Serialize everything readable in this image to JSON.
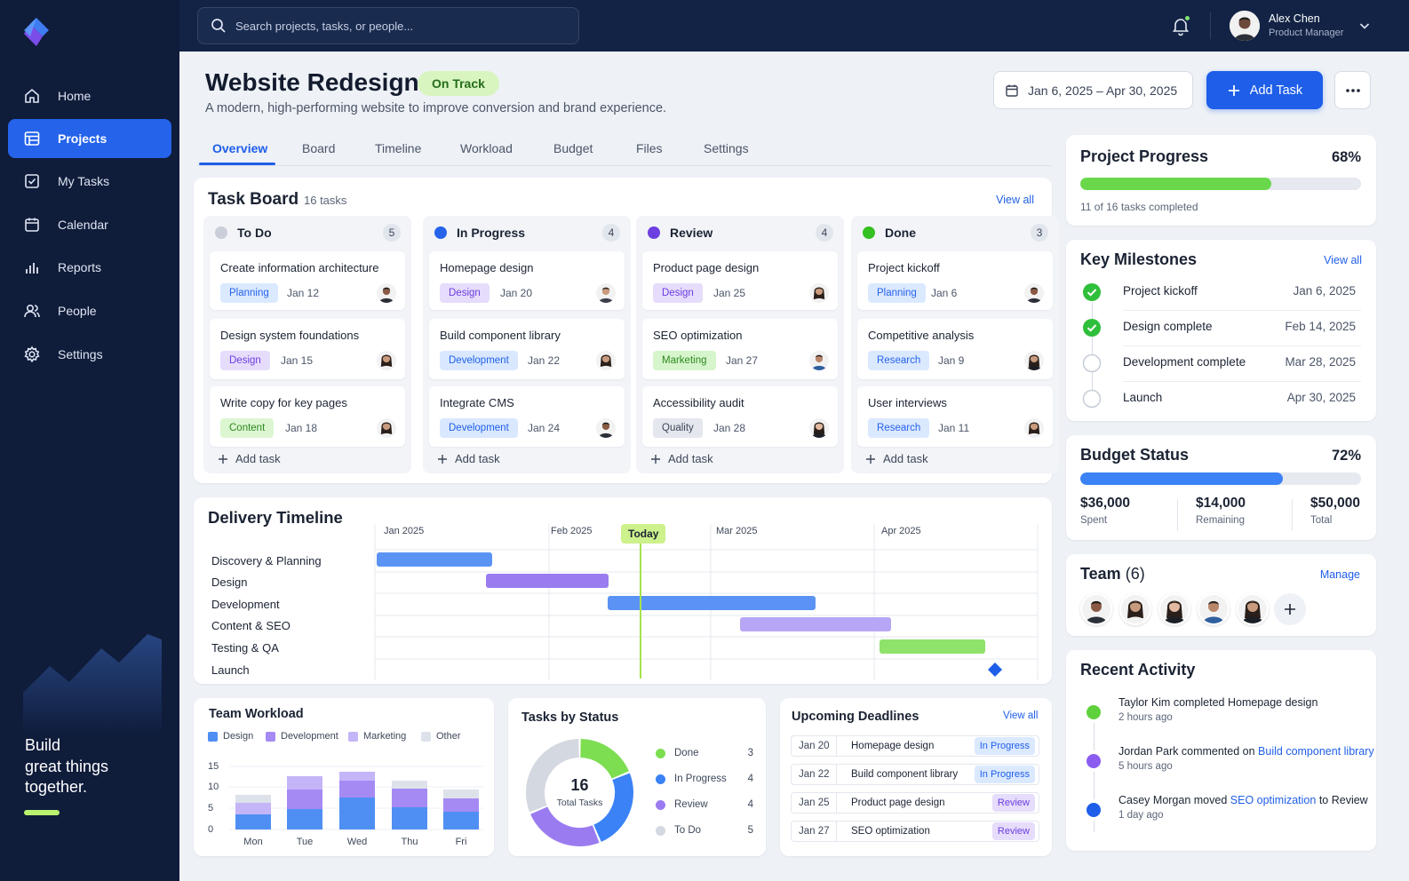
{
  "sidebar": {
    "items": [
      {
        "label": "Home",
        "icon": "home-icon",
        "active": false
      },
      {
        "label": "Projects",
        "icon": "projects-icon",
        "active": true
      },
      {
        "label": "My Tasks",
        "icon": "check-square-icon",
        "active": false
      },
      {
        "label": "Calendar",
        "icon": "calendar-icon",
        "active": false
      },
      {
        "label": "Reports",
        "icon": "bar-chart-icon",
        "active": false
      },
      {
        "label": "People",
        "icon": "people-icon",
        "active": false
      },
      {
        "label": "Settings",
        "icon": "gear-icon",
        "active": false
      }
    ],
    "promo": {
      "line1": "Build",
      "line2": "great things",
      "line3": "together."
    }
  },
  "topbar": {
    "search_placeholder": "Search projects, tasks, or people...",
    "user": {
      "name": "Alex Chen",
      "role": "Product Manager"
    }
  },
  "project": {
    "title": "Website Redesign",
    "status": "On Track",
    "subtitle": "A modern, high-performing website to improve conversion and brand experience.",
    "date_range": "Jan 6, 2025 – Apr 30, 2025",
    "add_task_label": "Add Task",
    "tabs": [
      "Overview",
      "Board",
      "Timeline",
      "Workload",
      "Budget",
      "Files",
      "Settings"
    ],
    "active_tab": "Overview"
  },
  "task_board": {
    "title": "Task Board",
    "count": "16 tasks",
    "view_all": "View all",
    "add_task": "Add task",
    "columns": [
      {
        "title": "To Do",
        "count": "5",
        "color": "#c9ced8",
        "cards": [
          {
            "title": "Create information architecture",
            "tag": "Planning",
            "date": "Jan 12"
          },
          {
            "title": "Design system foundations",
            "tag": "Design",
            "date": "Jan 15"
          },
          {
            "title": "Write copy for key pages",
            "tag": "Content",
            "date": "Jan 18"
          }
        ]
      },
      {
        "title": "In Progress",
        "count": "4",
        "color": "#2563eb",
        "cards": [
          {
            "title": "Homepage design",
            "tag": "Design",
            "date": "Jan 20"
          },
          {
            "title": "Build component library",
            "tag": "Development",
            "date": "Jan 22"
          },
          {
            "title": "Integrate CMS",
            "tag": "Development",
            "date": "Jan 24"
          }
        ]
      },
      {
        "title": "Review",
        "count": "4",
        "color": "#6d3fe0",
        "cards": [
          {
            "title": "Product page design",
            "tag": "Design",
            "date": "Jan 25"
          },
          {
            "title": "SEO optimization",
            "tag": "Marketing",
            "date": "Jan 27"
          },
          {
            "title": "Accessibility audit",
            "tag": "Quality",
            "date": "Jan 28"
          }
        ]
      },
      {
        "title": "Done",
        "count": "3",
        "color": "#34c021",
        "cards": [
          {
            "title": "Project kickoff",
            "tag": "Planning",
            "date": "Jan 6"
          },
          {
            "title": "Competitive analysis",
            "tag": "Research",
            "date": "Jan 9"
          },
          {
            "title": "User interviews",
            "tag": "Research",
            "date": "Jan 11"
          }
        ]
      }
    ]
  },
  "timeline": {
    "title": "Delivery Timeline",
    "months": [
      "Jan 2025",
      "Feb 2025",
      "Mar 2025",
      "Apr 2025"
    ],
    "today_label": "Today",
    "phases": [
      {
        "name": "Discovery & Planning",
        "color": "#5b93f5"
      },
      {
        "name": "Design",
        "color": "#9a7cf0"
      },
      {
        "name": "Development",
        "color": "#5b93f5"
      },
      {
        "name": "Content & SEO",
        "color": "#b6a6f5"
      },
      {
        "name": "Testing & QA",
        "color": "#8fe26a"
      },
      {
        "name": "Launch",
        "color": "#1e5ee8"
      }
    ]
  },
  "workload": {
    "title": "Team Workload",
    "legend": [
      "Design",
      "Development",
      "Marketing",
      "Other"
    ],
    "colors": [
      "#4f8ff3",
      "#a58af3",
      "#c4b5f8",
      "#dde2ea"
    ],
    "y_ticks": [
      "15",
      "10",
      "5",
      "0"
    ],
    "days": [
      "Mon",
      "Tue",
      "Wed",
      "Thu",
      "Fri"
    ]
  },
  "tasks_by_status": {
    "title": "Tasks by Status",
    "total": "16",
    "total_label": "Total Tasks",
    "items": [
      {
        "label": "Done",
        "value": "3",
        "color": "#7dde52"
      },
      {
        "label": "In Progress",
        "value": "4",
        "color": "#3b82f6"
      },
      {
        "label": "Review",
        "value": "4",
        "color": "#9a7cf0"
      },
      {
        "label": "To Do",
        "value": "5",
        "color": "#d4d8e0"
      }
    ]
  },
  "deadlines": {
    "title": "Upcoming Deadlines",
    "view_all": "View all",
    "rows": [
      {
        "date": "Jan 20",
        "task": "Homepage design",
        "status": "In Progress"
      },
      {
        "date": "Jan 22",
        "task": "Build component library",
        "status": "In Progress"
      },
      {
        "date": "Jan 25",
        "task": "Product page design",
        "status": "Review"
      },
      {
        "date": "Jan 27",
        "task": "SEO optimization",
        "status": "Review"
      }
    ]
  },
  "progress": {
    "title": "Project Progress",
    "percent_label": "68%",
    "fraction": 0.68,
    "subtitle": "11 of 16 tasks completed"
  },
  "milestones": {
    "title": "Key Milestones",
    "view_all": "View all",
    "items": [
      {
        "name": "Project kickoff",
        "date": "Jan 6, 2025",
        "done": true
      },
      {
        "name": "Design complete",
        "date": "Feb 14, 2025",
        "done": true
      },
      {
        "name": "Development complete",
        "date": "Mar 28, 2025",
        "done": false
      },
      {
        "name": "Launch",
        "date": "Apr 30, 2025",
        "done": false
      }
    ]
  },
  "budget": {
    "title": "Budget Status",
    "percent_label": "72%",
    "fraction": 0.72,
    "spent": "$36,000",
    "spent_label": "Spent",
    "remaining": "$14,000",
    "remaining_label": "Remaining",
    "total": "$50,000",
    "total_label": "Total"
  },
  "team": {
    "title": "Team",
    "count": "(6)",
    "manage": "Manage"
  },
  "activity": {
    "title": "Recent Activity",
    "items": [
      {
        "who": "Taylor Kim",
        "action": " completed ",
        "target": "Homepage design",
        "target_link": false,
        "tail": "",
        "time": "2 hours ago",
        "color": "#5fd13c"
      },
      {
        "who": "Jordan Park",
        "action": " commented on ",
        "target": "Build component library",
        "target_link": true,
        "tail": "",
        "time": "5 hours ago",
        "color": "#8b5cf0"
      },
      {
        "who": "Casey Morgan",
        "action": " moved ",
        "target": "SEO optimization",
        "target_link": true,
        "tail": " to Review",
        "time": "1 day ago",
        "color": "#1e5ee8"
      }
    ]
  }
}
